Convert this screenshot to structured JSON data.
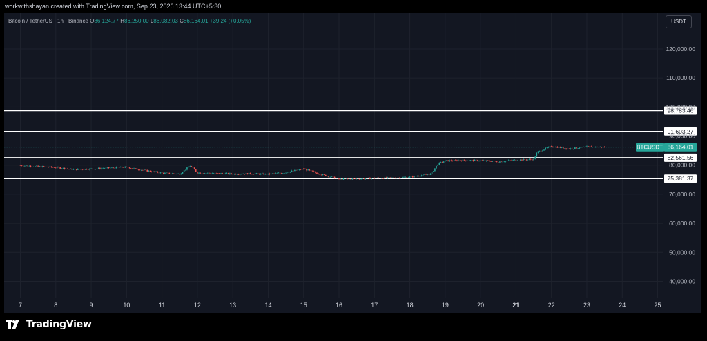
{
  "header": {
    "creator_line": "workwithshayan created with TradingView.com, Sep 23, 2026 13:44 UTC+5:30"
  },
  "legend": {
    "symbol": "Bitcoin / TetherUS · 1h · Binance",
    "o_label": "O",
    "o_value": "86,124.77",
    "h_label": "H",
    "h_value": "86,250.00",
    "l_label": "L",
    "l_value": "86,082.03",
    "c_label": "C",
    "c_value": "86,164.01",
    "change": "+39.24 (+0.05%)"
  },
  "currency_button": "USDT",
  "footer": {
    "brand": "TradingView"
  },
  "colors": {
    "up": "#26a69a",
    "down": "#ef5350",
    "background": "#131722",
    "page": "#000000"
  },
  "chart_data": {
    "type": "candlestick",
    "y_axis_ticks": [
      {
        "value": 120000,
        "label": "120,000.00"
      },
      {
        "value": 110000,
        "label": "110,000.00"
      },
      {
        "value": 100000,
        "label": "100,000.00"
      },
      {
        "value": 90000,
        "label": "90,000.00"
      },
      {
        "value": 80000,
        "label": "80,000.00"
      },
      {
        "value": 70000,
        "label": "70,000.00"
      },
      {
        "value": 60000,
        "label": "60,000.00"
      },
      {
        "value": 50000,
        "label": "50,000.00"
      },
      {
        "value": 40000,
        "label": "40,000.00"
      }
    ],
    "x_axis_ticks": [
      "7",
      "8",
      "9",
      "10",
      "11",
      "12",
      "13",
      "14",
      "15",
      "16",
      "17",
      "18",
      "19",
      "20",
      "21",
      "22",
      "23",
      "24",
      "25"
    ],
    "x_axis_bold": [
      "21"
    ],
    "horizontal_levels": [
      {
        "value": 98783.46,
        "label": "98,783.46"
      },
      {
        "value": 91603.27,
        "label": "91,603.27"
      },
      {
        "value": 82561.56,
        "label": "82,561.56"
      },
      {
        "value": 75381.37,
        "label": "75,381.37"
      }
    ],
    "last_price": {
      "symbol": "BTCUSDT",
      "value": 86164.01,
      "label": "86,164.01"
    },
    "price_path": [
      [
        7,
        79900
      ],
      [
        7.5,
        79500
      ],
      [
        8,
        79200
      ],
      [
        8.5,
        78500
      ],
      [
        9,
        78700
      ],
      [
        9.5,
        79000
      ],
      [
        10,
        79300
      ],
      [
        10.5,
        78200
      ],
      [
        11,
        77300
      ],
      [
        11.5,
        77000
      ],
      [
        11.8,
        79800
      ],
      [
        12,
        77400
      ],
      [
        12.5,
        77200
      ],
      [
        13,
        77000
      ],
      [
        13.5,
        77100
      ],
      [
        14,
        76900
      ],
      [
        14.5,
        77500
      ],
      [
        15,
        78700
      ],
      [
        15.5,
        76800
      ],
      [
        16,
        75200
      ],
      [
        16.5,
        75300
      ],
      [
        17,
        75500
      ],
      [
        17.5,
        75600
      ],
      [
        18,
        75900
      ],
      [
        18.6,
        77000
      ],
      [
        18.8,
        80500
      ],
      [
        19,
        81500
      ],
      [
        19.5,
        81700
      ],
      [
        20,
        81600
      ],
      [
        20.5,
        81200
      ],
      [
        21,
        81800
      ],
      [
        21.5,
        82000
      ],
      [
        21.6,
        84500
      ],
      [
        22,
        86500
      ],
      [
        22.5,
        85600
      ],
      [
        23,
        86300
      ],
      [
        23.5,
        86164
      ]
    ]
  }
}
